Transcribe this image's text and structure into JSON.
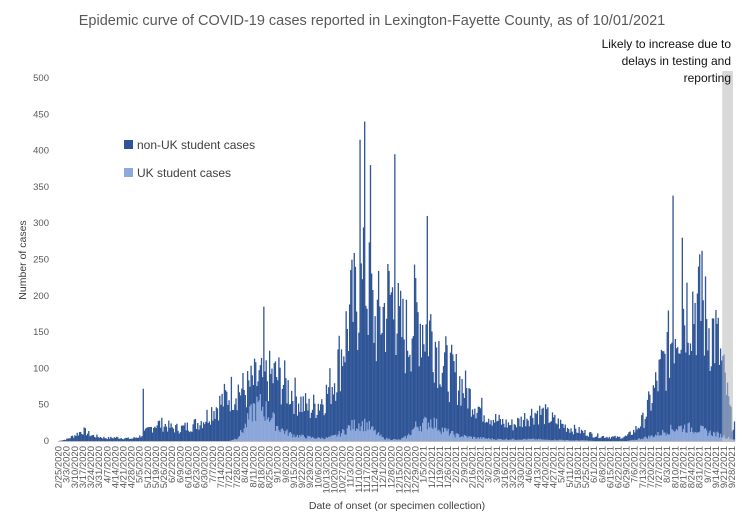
{
  "chart_data": {
    "type": "bar",
    "title": "Epidemic curve of COVID-19 cases reported in Lexington-Fayette County, as of 10/01/2021",
    "xlabel": "Date of onset (or specimen collection)",
    "ylabel": "Number of cases",
    "ylim": [
      0,
      500
    ],
    "y_ticks": [
      0,
      50,
      100,
      150,
      200,
      250,
      300,
      350,
      400,
      450,
      500
    ],
    "grid": false,
    "stacked": true,
    "legend_position": "upper-left",
    "x_tick_labels": [
      "2/25/2020",
      "3/3/2020",
      "3/10/2020",
      "3/17/2020",
      "3/24/2020",
      "3/31/2020",
      "4/7/2020",
      "4/14/2020",
      "4/21/2020",
      "4/28/2020",
      "5/5/2020",
      "5/12/2020",
      "5/19/2020",
      "5/26/2020",
      "6/2/2020",
      "6/9/2020",
      "6/16/2020",
      "6/23/2020",
      "6/30/2020",
      "7/7/2020",
      "7/14/2020",
      "7/21/2020",
      "7/28/2020",
      "8/4/2020",
      "8/11/2020",
      "8/18/2020",
      "8/25/2020",
      "9/1/2020",
      "9/8/2020",
      "9/15/2020",
      "9/22/2020",
      "9/29/2020",
      "10/6/2020",
      "10/13/2020",
      "10/20/2020",
      "10/27/2020",
      "11/3/2020",
      "11/10/2020",
      "11/17/2020",
      "11/24/2020",
      "12/1/2020",
      "12/8/2020",
      "12/15/2020",
      "12/22/2020",
      "12/29/2020",
      "1/5/2021",
      "1/12/2021",
      "1/19/2021",
      "1/26/2021",
      "2/2/2021",
      "2/9/2021",
      "2/16/2021",
      "2/23/2021",
      "3/2/2021",
      "3/9/2021",
      "3/16/2021",
      "3/23/2021",
      "3/30/2021",
      "4/6/2021",
      "4/13/2021",
      "4/20/2021",
      "4/27/2021",
      "5/4/2021",
      "5/11/2021",
      "5/18/2021",
      "5/25/2021",
      "6/1/2021",
      "6/8/2021",
      "6/15/2021",
      "6/22/2021",
      "6/29/2021",
      "7/6/2021",
      "7/13/2021",
      "7/20/2021",
      "7/27/2021",
      "8/3/2021",
      "8/10/2021",
      "8/17/2021",
      "8/24/2021",
      "8/31/2021",
      "9/7/2021",
      "9/14/2021",
      "9/21/2021",
      "9/28/2021"
    ],
    "x_anchor_dates": [
      "2/25/2020",
      "9/30/2021"
    ],
    "series": [
      {
        "name": "non-UK student cases",
        "color": "#2F5597",
        "weekly_peaks": [
          0,
          3,
          10,
          18,
          10,
          7,
          5,
          6,
          5,
          4,
          8,
          18,
          30,
          28,
          22,
          22,
          25,
          30,
          38,
          55,
          65,
          80,
          90,
          85,
          100,
          105,
          110,
          110,
          95,
          80,
          65,
          55,
          65,
          80,
          110,
          160,
          220,
          250,
          270,
          200,
          220,
          250,
          190,
          180,
          220,
          200,
          190,
          150,
          120,
          110,
          90,
          70,
          55,
          45,
          35,
          30,
          28,
          35,
          45,
          50,
          45,
          35,
          28,
          22,
          18,
          14,
          10,
          8,
          7,
          6,
          8,
          18,
          35,
          70,
          110,
          150,
          200,
          230,
          240,
          230,
          200,
          180,
          110,
          30
        ],
        "spikes": [
          {
            "date": "11/11/2020",
            "value": 415
          },
          {
            "date": "11/15/2020",
            "value": 440
          },
          {
            "date": "11/20/2020",
            "value": 380
          },
          {
            "date": "12/11/2020",
            "value": 395
          },
          {
            "date": "1/8/2021",
            "value": 310
          },
          {
            "date": "8/20/2020",
            "value": 185
          },
          {
            "date": "8/8/2021",
            "value": 338
          },
          {
            "date": "5/8/2020",
            "value": 72
          },
          {
            "date": "8/16/2021",
            "value": 280
          },
          {
            "date": "9/2/2021",
            "value": 262
          }
        ]
      },
      {
        "name": "UK student cases",
        "color": "#8EA9DB",
        "weekly_peaks": [
          0,
          0,
          0,
          0,
          0,
          0,
          0,
          0,
          0,
          0,
          0,
          0,
          0,
          0,
          0,
          0,
          0,
          0,
          0,
          0,
          0,
          0,
          5,
          25,
          55,
          60,
          45,
          25,
          15,
          10,
          8,
          6,
          5,
          5,
          8,
          15,
          25,
          30,
          28,
          15,
          5,
          3,
          2,
          8,
          25,
          30,
          35,
          22,
          15,
          10,
          8,
          6,
          5,
          4,
          3,
          3,
          3,
          3,
          3,
          3,
          2,
          2,
          2,
          1,
          1,
          1,
          0,
          0,
          0,
          0,
          0,
          2,
          5,
          8,
          12,
          18,
          22,
          24,
          22,
          20,
          15,
          12,
          8,
          3
        ]
      }
    ],
    "annotation": {
      "text_lines": [
        "Likely to increase due to",
        "delays in testing and",
        "reporting"
      ],
      "shaded_from": "9/20/2021",
      "shaded_to": "9/30/2021",
      "shade_color": "#D9D9D9"
    }
  }
}
